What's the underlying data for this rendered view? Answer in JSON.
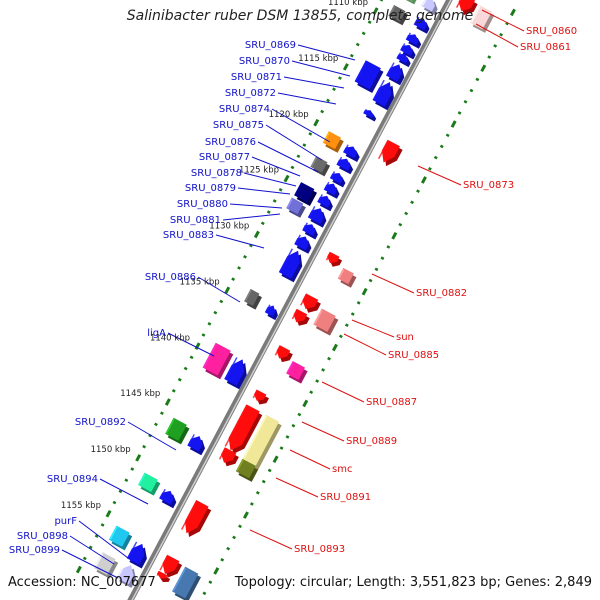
{
  "title": "Salinibacter ruber DSM 13855, complete genome",
  "footer": {
    "accession": "Accession: NC_007677",
    "summary": "Topology: circular; Length: 3,551,823 bp; Genes: 2,849"
  },
  "colors": {
    "forward_label": "#1010cc",
    "reverse_label": "#dd1111",
    "backbone": "#888888",
    "tick": "#1a7a1a"
  },
  "ticks": [
    {
      "label": "1110 kbp",
      "kbp": 1110
    },
    {
      "label": "1115 kbp",
      "kbp": 1115
    },
    {
      "label": "1120 kbp",
      "kbp": 1120
    },
    {
      "label": "1125 kbp",
      "kbp": 1125
    },
    {
      "label": "1130 kbp",
      "kbp": 1130
    },
    {
      "label": "1135 kbp",
      "kbp": 1135
    },
    {
      "label": "1140 kbp",
      "kbp": 1140
    },
    {
      "label": "1145 kbp",
      "kbp": 1145
    },
    {
      "label": "1150 kbp",
      "kbp": 1150
    },
    {
      "label": "1155 kbp",
      "kbp": 1155
    }
  ],
  "forward_labels": [
    {
      "name": "SRU_0869"
    },
    {
      "name": "SRU_0870"
    },
    {
      "name": "SRU_0871"
    },
    {
      "name": "SRU_0872"
    },
    {
      "name": "SRU_0874"
    },
    {
      "name": "SRU_0875"
    },
    {
      "name": "SRU_0876"
    },
    {
      "name": "SRU_0877"
    },
    {
      "name": "SRU_0878"
    },
    {
      "name": "SRU_0879"
    },
    {
      "name": "SRU_0880"
    },
    {
      "name": "SRU_0881"
    },
    {
      "name": "SRU_0883"
    },
    {
      "name": "SRU_0886"
    },
    {
      "name": "ligA"
    },
    {
      "name": "SRU_0892"
    },
    {
      "name": "SRU_0894"
    },
    {
      "name": "purF"
    },
    {
      "name": "SRU_0898"
    },
    {
      "name": "SRU_0899"
    }
  ],
  "reverse_labels": [
    {
      "name": "SRU_0860"
    },
    {
      "name": "SRU_0861"
    },
    {
      "name": "SRU_0873"
    },
    {
      "name": "SRU_0882"
    },
    {
      "name": "sun"
    },
    {
      "name": "SRU_0885"
    },
    {
      "name": "SRU_0887"
    },
    {
      "name": "SRU_0889"
    },
    {
      "name": "smc"
    },
    {
      "name": "SRU_0891"
    },
    {
      "name": "SRU_0893"
    }
  ]
}
